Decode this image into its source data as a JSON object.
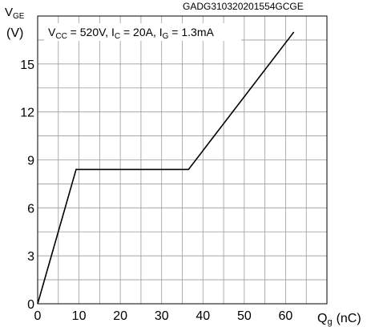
{
  "chart_data": {
    "type": "line",
    "figure_id": "GADG310320201554GCGE",
    "ylabel_main": "V",
    "ylabel_sub": "GE",
    "ylabel_unit": "(V)",
    "xlabel_main": "Q",
    "xlabel_sub": "g",
    "xlabel_unit": "(nC)",
    "condition_parts": {
      "vcc_main": "V",
      "vcc_sub": "CC",
      "vcc_val": " = 520V, ",
      "ic_main": "I",
      "ic_sub": "C",
      "ic_val": " = 20A, ",
      "ig_main": "I",
      "ig_sub": "G",
      "ig_val": " = 1.3mA"
    },
    "xlim": [
      0,
      70
    ],
    "ylim": [
      0,
      18
    ],
    "xticks": [
      0,
      10,
      20,
      30,
      40,
      50,
      60
    ],
    "yticks": [
      0,
      3,
      6,
      9,
      12,
      15
    ],
    "minor_x_step": 5,
    "minor_y_step": 1.5,
    "grid": true,
    "series": [
      {
        "x": [
          0,
          9.3,
          36.5,
          62
        ],
        "y": [
          0,
          8.4,
          8.4,
          17.0
        ]
      }
    ],
    "line_color": "#000000",
    "grid_color": "#9a9a9a"
  }
}
